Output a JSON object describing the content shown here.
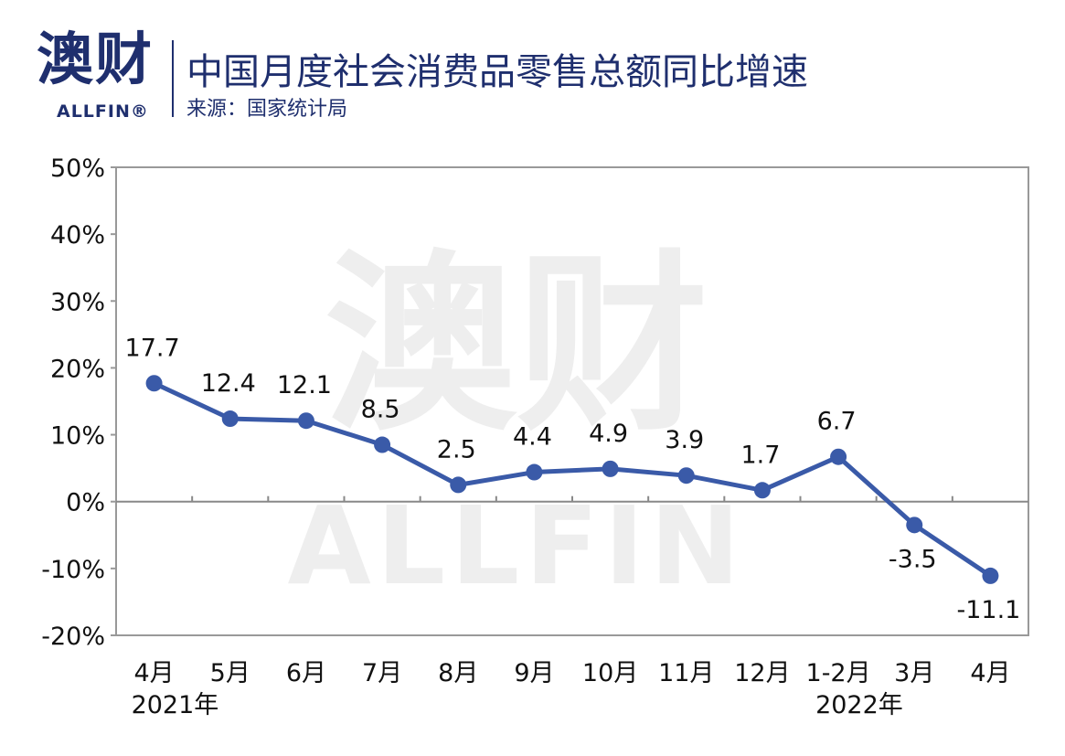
{
  "header": {
    "logo_text": "澳财",
    "logo_sub": "ALLFIN®",
    "title": "中国月度社会消费品零售总额同比增速",
    "source": "来源：国家统计局"
  },
  "watermark": {
    "text": "澳财",
    "sub": "ALLFIN"
  },
  "colors": {
    "series": "#3a5aa8",
    "text": "#1f2f6e",
    "frame": "#999999",
    "zero_line": "#888888"
  },
  "chart_data": {
    "type": "line",
    "title": "中国月度社会消费品零售总额同比增速",
    "subtitle": "来源：国家统计局",
    "xlabel": "",
    "ylabel": "",
    "ylim": [
      -20,
      50
    ],
    "yticks": [
      -20,
      -10,
      0,
      10,
      20,
      30,
      40,
      50
    ],
    "ytick_labels": [
      "-20%",
      "-10%",
      "0%",
      "10%",
      "20%",
      "30%",
      "40%",
      "50%"
    ],
    "categories": [
      "4月",
      "5月",
      "6月",
      "7月",
      "8月",
      "9月",
      "10月",
      "11月",
      "12月",
      "1-2月",
      "3月",
      "4月"
    ],
    "year_labels": [
      {
        "index": 0,
        "label": "2021年"
      },
      {
        "index": 9,
        "label": "2022年"
      }
    ],
    "series": [
      {
        "values": [
          17.7,
          12.4,
          12.1,
          8.5,
          2.5,
          4.4,
          4.9,
          3.9,
          1.7,
          6.7,
          -3.5,
          -11.1
        ]
      }
    ],
    "data_labels": [
      "17.7",
      "12.4",
      "12.1",
      "8.5",
      "2.5",
      "4.4",
      "4.9",
      "3.9",
      "1.7",
      "6.7",
      "-3.5",
      "-11.1"
    ],
    "grid": false,
    "legend": "none"
  }
}
